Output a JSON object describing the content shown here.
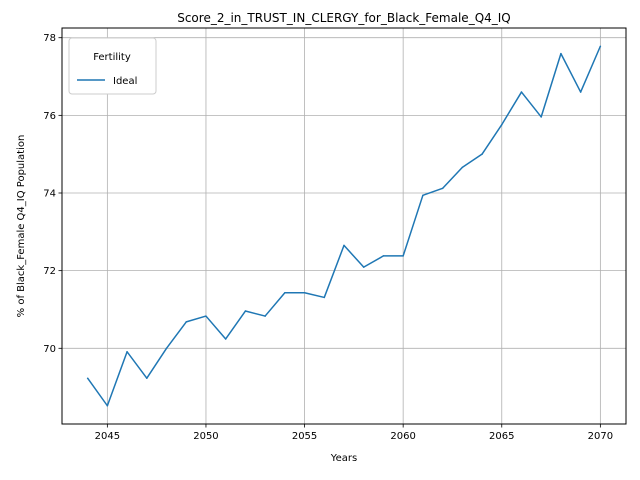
{
  "chart_data": {
    "type": "line",
    "title": "Score_2_in_TRUST_IN_CLERGY_for_Black_Female_Q4_IQ",
    "xlabel": "Years",
    "ylabel": "% of Black_Female Q4_IQ Population",
    "xlim": [
      2042.7,
      2071.3
    ],
    "ylim": [
      68.05,
      78.25
    ],
    "xticks": [
      2045,
      2050,
      2055,
      2060,
      2065,
      2070
    ],
    "yticks": [
      70,
      72,
      74,
      76,
      78
    ],
    "grid": true,
    "legend": {
      "title": "Fertility",
      "position": "top-left"
    },
    "color": "#1f77b4",
    "series": [
      {
        "name": "Ideal",
        "x": [
          2044,
          2045,
          2046,
          2047,
          2048,
          2049,
          2050,
          2051,
          2052,
          2053,
          2054,
          2055,
          2056,
          2057,
          2058,
          2059,
          2060,
          2061,
          2062,
          2063,
          2064,
          2065,
          2066,
          2067,
          2068,
          2069,
          2070
        ],
        "y": [
          69.23,
          68.52,
          69.91,
          69.23,
          70.0,
          70.68,
          70.83,
          70.24,
          70.96,
          70.83,
          71.43,
          71.43,
          71.31,
          72.65,
          72.09,
          72.38,
          72.38,
          73.94,
          74.12,
          74.66,
          75.0,
          75.76,
          76.6,
          75.96,
          77.59,
          76.6,
          77.78
        ]
      }
    ]
  }
}
